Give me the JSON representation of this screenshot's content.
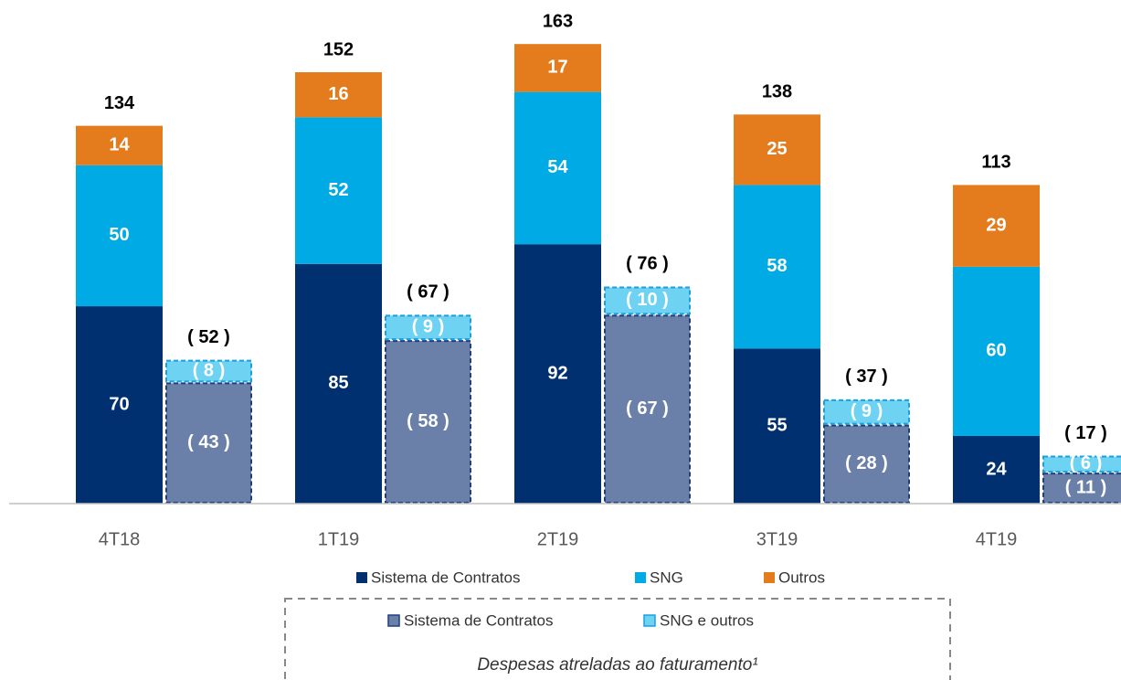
{
  "chart_data": {
    "type": "bar",
    "categories": [
      "4T18",
      "1T19",
      "2T19",
      "3T19",
      "4T19"
    ],
    "series": [
      {
        "name": "Sistema de Contratos",
        "color": "#003070",
        "values": [
          70,
          85,
          92,
          55,
          24
        ]
      },
      {
        "name": "SNG",
        "color": "#00aae4",
        "values": [
          50,
          52,
          54,
          58,
          60
        ]
      },
      {
        "name": "Outros",
        "color": "#e47c1e",
        "values": [
          14,
          16,
          17,
          25,
          29
        ]
      }
    ],
    "totals": [
      134,
      152,
      163,
      138,
      113
    ],
    "expense_series": [
      {
        "name": "Sistema de Contratos",
        "color": "#6a80a8",
        "values": [
          43,
          58,
          67,
          28,
          11
        ],
        "value_labels": [
          "( 43 )",
          "( 58 )",
          "( 67 )",
          "( 28 )",
          "( 11 )"
        ]
      },
      {
        "name": "SNG e outros",
        "color": "#6ed2f2",
        "values": [
          8,
          9,
          10,
          9,
          6
        ],
        "value_labels": [
          "( 8 )",
          "( 9 )",
          "( 10 )",
          "( 9 )",
          "( 6 )"
        ]
      }
    ],
    "expense_totals": [
      52,
      67,
      76,
      37,
      17
    ],
    "expense_total_labels": [
      "( 52 )",
      "( 67 )",
      "( 76 )",
      "( 37 )",
      "( 17 )"
    ],
    "legend_caption": "Despesas atreladas ao faturamento¹",
    "ylim": [
      0,
      165
    ]
  }
}
